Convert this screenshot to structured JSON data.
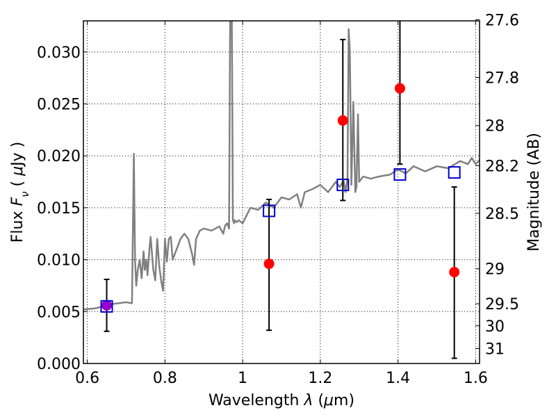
{
  "chart_data": {
    "type": "scatter",
    "xlabel": "Wavelength  λ (μm)",
    "ylabel": "Flux  F_ν  ( μJy )",
    "ylabel_parts": [
      "Flux  ",
      "F",
      "ν",
      "  ( ",
      "μ",
      "Jy )"
    ],
    "xlabel_parts": [
      "Wavelength  ",
      "λ",
      " (",
      "μ",
      "m)"
    ],
    "y2label": "Magnitude (AB)",
    "xlim": [
      0.59,
      1.61
    ],
    "ylim": [
      0.0,
      0.033
    ],
    "x_ticks": [
      0.6,
      0.8,
      1.0,
      1.2,
      1.4,
      1.6
    ],
    "x_tick_labels": [
      "0.6",
      "0.8",
      "1",
      "1.2",
      "1.4",
      "1.6"
    ],
    "y_ticks": [
      0.0,
      0.005,
      0.01,
      0.015,
      0.02,
      0.025,
      0.03
    ],
    "y_tick_labels": [
      "0.000",
      "0.005",
      "0.010",
      "0.015",
      "0.020",
      "0.025",
      "0.030"
    ],
    "mag_ticks": [
      27.6,
      27.8,
      28,
      28.2,
      28.5,
      29,
      29.5,
      30,
      31
    ],
    "mag_tick_labels": [
      "27.6",
      "27.8",
      "28",
      "28.2",
      "28.5",
      "29",
      "29.5",
      "30",
      "31"
    ],
    "grid": true,
    "grid_style": "dotted",
    "series": [
      {
        "type": "line",
        "color": "#808080",
        "x": [
          0.59,
          0.62,
          0.64,
          0.66,
          0.68,
          0.7,
          0.715,
          0.72,
          0.723,
          0.726,
          0.73,
          0.735,
          0.74,
          0.745,
          0.748,
          0.752,
          0.755,
          0.76,
          0.763,
          0.77,
          0.775,
          0.78,
          0.785,
          0.79,
          0.795,
          0.8,
          0.805,
          0.81,
          0.815,
          0.82,
          0.83,
          0.84,
          0.85,
          0.86,
          0.87,
          0.875,
          0.88,
          0.89,
          0.9,
          0.92,
          0.94,
          0.95,
          0.955,
          0.96,
          0.965,
          0.968,
          0.972,
          0.975,
          0.978,
          0.98,
          0.985,
          0.99,
          1.0,
          1.02,
          1.04,
          1.06,
          1.08,
          1.1,
          1.12,
          1.14,
          1.15,
          1.16,
          1.18,
          1.2,
          1.22,
          1.24,
          1.25,
          1.26,
          1.265,
          1.27,
          1.273,
          1.276,
          1.28,
          1.285,
          1.29,
          1.293,
          1.297,
          1.3,
          1.31,
          1.33,
          1.35,
          1.38,
          1.4,
          1.42,
          1.44,
          1.47,
          1.5,
          1.53,
          1.56,
          1.58,
          1.59,
          1.6,
          1.61
        ],
        "y": [
          0.0052,
          0.0053,
          0.0055,
          0.0057,
          0.0058,
          0.0059,
          0.0058,
          0.0202,
          0.01,
          0.0075,
          0.009,
          0.01,
          0.0082,
          0.0108,
          0.009,
          0.01,
          0.0085,
          0.011,
          0.0122,
          0.009,
          0.008,
          0.012,
          0.0095,
          0.008,
          0.007,
          0.012,
          0.0098,
          0.012,
          0.0122,
          0.01,
          0.011,
          0.012,
          0.0125,
          0.012,
          0.0105,
          0.0095,
          0.012,
          0.0128,
          0.013,
          0.0128,
          0.0132,
          0.0125,
          0.0133,
          0.0135,
          0.013,
          0.034,
          0.034,
          0.0138,
          0.0135,
          0.0138,
          0.0136,
          0.0138,
          0.0135,
          0.015,
          0.0148,
          0.0155,
          0.015,
          0.016,
          0.0158,
          0.0163,
          0.015,
          0.0165,
          0.0168,
          0.0172,
          0.0165,
          0.0175,
          0.017,
          0.0176,
          0.0165,
          0.0178,
          0.0322,
          0.03,
          0.0172,
          0.0252,
          0.0165,
          0.017,
          0.024,
          0.0175,
          0.018,
          0.0178,
          0.018,
          0.0182,
          0.0187,
          0.0183,
          0.019,
          0.0185,
          0.019,
          0.0188,
          0.0195,
          0.0192,
          0.0198,
          0.0192,
          0.0196
        ]
      },
      {
        "type": "scatter",
        "marker": "circle",
        "color": "#ff0000",
        "points": [
          {
            "x": 0.65,
            "y": 0.0056,
            "yerr_low": 0.0031,
            "yerr_high": 0.0081
          },
          {
            "x": 1.068,
            "y": 0.0096,
            "yerr_low": 0.0032,
            "yerr_high": 0.0158
          },
          {
            "x": 1.258,
            "y": 0.0234,
            "yerr_low": 0.0157,
            "yerr_high": 0.0312
          },
          {
            "x": 1.405,
            "y": 0.0265,
            "yerr_low": 0.0192,
            "yerr_high": 0.034
          },
          {
            "x": 1.545,
            "y": 0.0088,
            "yerr_low": 0.0005,
            "yerr_high": 0.017
          }
        ]
      },
      {
        "type": "scatter",
        "marker": "open-square",
        "color": "#0000cc",
        "points": [
          {
            "x": 0.65,
            "y": 0.0055
          },
          {
            "x": 1.068,
            "y": 0.0147
          },
          {
            "x": 1.258,
            "y": 0.0172
          },
          {
            "x": 1.405,
            "y": 0.0182
          },
          {
            "x": 1.545,
            "y": 0.0184
          }
        ]
      }
    ],
    "overlap_marker_color": "#9900cc"
  }
}
